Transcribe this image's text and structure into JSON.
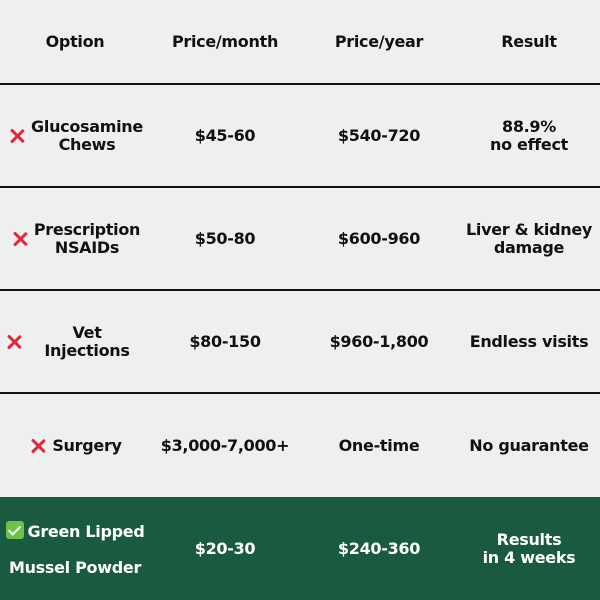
{
  "headers": [
    "Option",
    "Price/month",
    "Price/year",
    "Result"
  ],
  "rows": [
    {
      "option": "Glucosamine\nChews",
      "month": "$45-60",
      "year": "$540-720",
      "result": "88.9%\nno effect",
      "marker": "x-icon"
    },
    {
      "option": "Prescription\nNSAIDs",
      "month": "$50-80",
      "year": "$600-960",
      "result": "Liver & kidney\ndamage",
      "marker": "x-icon"
    },
    {
      "option": "Vet Injections",
      "month": "$80-150",
      "year": "$960-1,800",
      "result": "Endless visits",
      "marker": "x-icon"
    },
    {
      "option": "Surgery",
      "month": "$3,000-7,000+",
      "year": "One-time",
      "result": "No guarantee",
      "marker": "x-icon"
    },
    {
      "option_line1": "Green Lipped",
      "option_line2": "Mussel Powder",
      "month": "$20-30",
      "year": "$240-360",
      "result": "Results\nin 4 weeks",
      "marker": "check-icon"
    }
  ],
  "colors": {
    "x_mark": "#e0283a",
    "highlight_row": "#1a5a40",
    "check": "#6cc24a",
    "background": "#eef0ef"
  }
}
